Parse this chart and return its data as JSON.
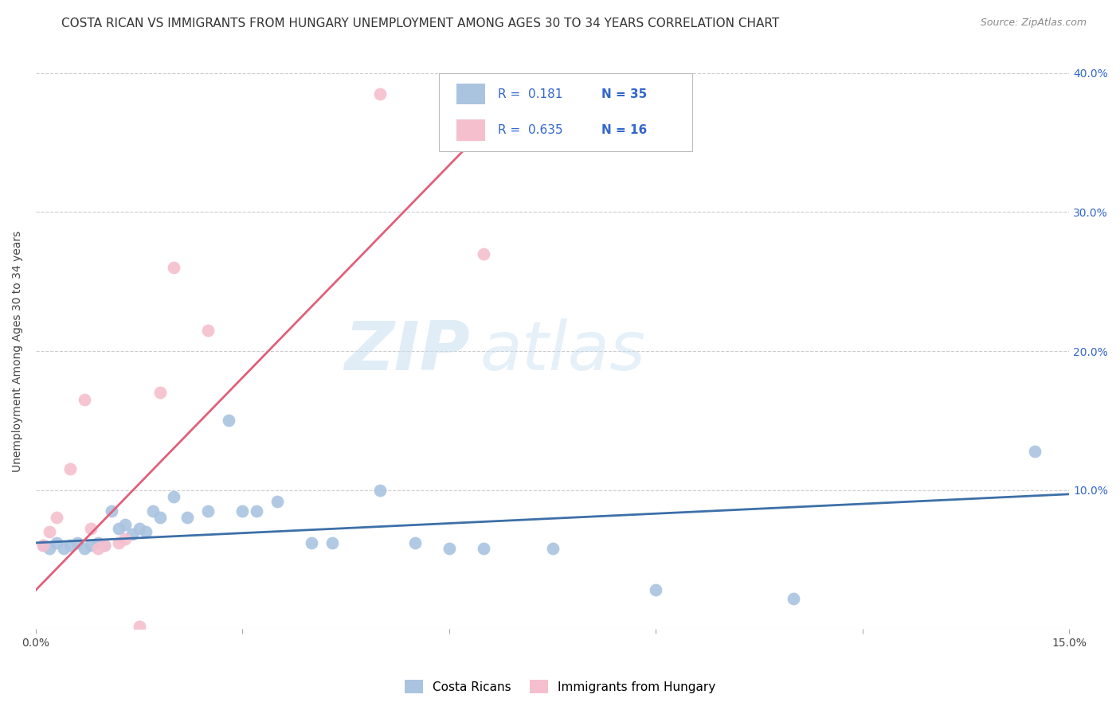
{
  "title": "COSTA RICAN VS IMMIGRANTS FROM HUNGARY UNEMPLOYMENT AMONG AGES 30 TO 34 YEARS CORRELATION CHART",
  "source": "Source: ZipAtlas.com",
  "ylabel": "Unemployment Among Ages 30 to 34 years",
  "watermark_zip": "ZIP",
  "watermark_atlas": "atlas",
  "xlim": [
    0.0,
    0.15
  ],
  "ylim": [
    0.0,
    0.4
  ],
  "xticks": [
    0.0,
    0.03,
    0.06,
    0.09,
    0.12,
    0.15
  ],
  "xtick_labels": [
    "0.0%",
    "",
    "",
    "",
    "",
    "15.0%"
  ],
  "yticks_right": [
    0.0,
    0.1,
    0.2,
    0.3,
    0.4
  ],
  "ytick_labels_right": [
    "",
    "10.0%",
    "20.0%",
    "30.0%",
    "40.0%"
  ],
  "R_blue": "0.181",
  "N_blue": "35",
  "R_pink": "0.635",
  "N_pink": "16",
  "blue_scatter_x": [
    0.001,
    0.002,
    0.003,
    0.004,
    0.005,
    0.006,
    0.007,
    0.008,
    0.009,
    0.01,
    0.011,
    0.012,
    0.013,
    0.014,
    0.015,
    0.016,
    0.017,
    0.018,
    0.02,
    0.022,
    0.025,
    0.028,
    0.03,
    0.032,
    0.035,
    0.04,
    0.043,
    0.05,
    0.055,
    0.06,
    0.065,
    0.075,
    0.09,
    0.11,
    0.145
  ],
  "blue_scatter_y": [
    0.06,
    0.058,
    0.062,
    0.058,
    0.06,
    0.062,
    0.058,
    0.06,
    0.062,
    0.06,
    0.085,
    0.072,
    0.075,
    0.068,
    0.072,
    0.07,
    0.085,
    0.08,
    0.095,
    0.08,
    0.085,
    0.15,
    0.085,
    0.085,
    0.092,
    0.062,
    0.062,
    0.1,
    0.062,
    0.058,
    0.058,
    0.058,
    0.028,
    0.022,
    0.128
  ],
  "pink_scatter_x": [
    0.001,
    0.002,
    0.003,
    0.005,
    0.007,
    0.008,
    0.009,
    0.01,
    0.012,
    0.013,
    0.015,
    0.018,
    0.02,
    0.025,
    0.05,
    0.065
  ],
  "pink_scatter_y": [
    0.06,
    0.07,
    0.08,
    0.115,
    0.165,
    0.072,
    0.058,
    0.06,
    0.062,
    0.065,
    0.002,
    0.17,
    0.26,
    0.215,
    0.385,
    0.27
  ],
  "blue_line_x": [
    0.0,
    0.15
  ],
  "blue_line_y": [
    0.062,
    0.097
  ],
  "pink_line_x": [
    0.0,
    0.073
  ],
  "pink_line_y": [
    0.028,
    0.4
  ],
  "blue_dot_color": "#aac4e0",
  "pink_dot_color": "#f5bfce",
  "blue_line_color": "#3d6fa8",
  "pink_line_color": "#e0607a",
  "legend_blue_color": "#aac4e0",
  "legend_pink_color": "#f5bfce",
  "grid_color": "#cccccc",
  "title_fontsize": 11,
  "label_fontsize": 10,
  "tick_fontsize": 10,
  "source_fontsize": 9
}
